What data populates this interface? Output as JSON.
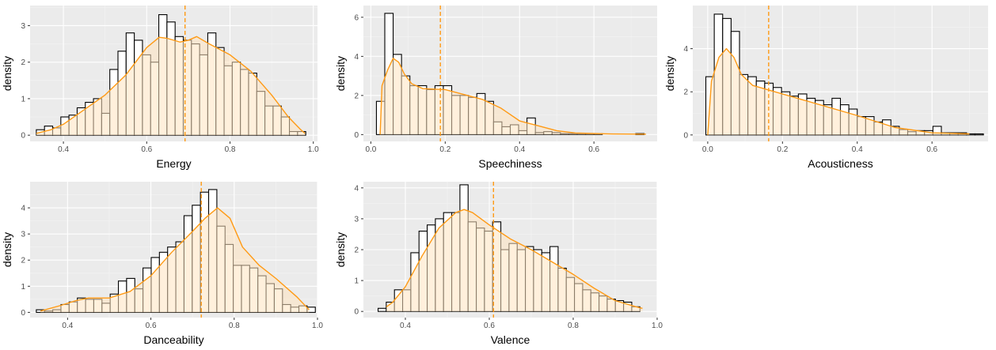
{
  "colors": {
    "panel_bg": "#ebebeb",
    "grid_major": "#ffffff",
    "bar_fill": "#ffffff",
    "bar_stroke": "#000000",
    "density_line": "#ff9a14",
    "density_fill": "#ffe4bf",
    "mean_line": "#ff9a14"
  },
  "chart_data": [
    {
      "type": "bar",
      "xlabel": "Energy",
      "ylabel": "density",
      "xlim": [
        0.32,
        1.01
      ],
      "ylim": [
        -0.17,
        3.55
      ],
      "xticks": [
        0.4,
        0.6,
        0.8,
        1.0
      ],
      "xtick_labels": [
        "0.4",
        "0.6",
        "0.8",
        "1.0"
      ],
      "yticks": [
        0,
        1,
        2,
        3
      ],
      "ytick_labels": [
        "0",
        "1",
        "2",
        "3"
      ],
      "bins_start": 0.335,
      "bin_width": 0.0196,
      "histogram": [
        0.15,
        0.25,
        0.2,
        0.5,
        0.55,
        0.75,
        0.9,
        1.0,
        0.6,
        1.8,
        2.3,
        2.8,
        2.6,
        2.2,
        2.0,
        3.3,
        3.1,
        2.7,
        2.6,
        2.5,
        2.2,
        2.8,
        2.4,
        1.9,
        2.0,
        1.8,
        1.7,
        1.2,
        0.8,
        0.8,
        0.5,
        0.1,
        0.1
      ],
      "density_x": [
        0.335,
        0.37,
        0.4,
        0.45,
        0.5,
        0.55,
        0.6,
        0.63,
        0.65,
        0.68,
        0.7,
        0.72,
        0.75,
        0.8,
        0.85,
        0.9,
        0.94,
        0.97,
        0.98
      ],
      "density_y": [
        0.05,
        0.15,
        0.3,
        0.7,
        1.1,
        1.65,
        2.4,
        2.68,
        2.65,
        2.55,
        2.6,
        2.7,
        2.5,
        2.2,
        1.75,
        1.1,
        0.5,
        0.15,
        0.05
      ],
      "mean": 0.692
    },
    {
      "type": "bar",
      "xlabel": "Speechiness",
      "ylabel": "density",
      "xlim": [
        -0.02,
        0.77
      ],
      "ylim": [
        -0.35,
        6.6
      ],
      "xticks": [
        0.0,
        0.2,
        0.4,
        0.6
      ],
      "xtick_labels": [
        "0.0",
        "0.2",
        "0.4",
        "0.6"
      ],
      "yticks": [
        0,
        2,
        4,
        6
      ],
      "ytick_labels": [
        "0",
        "2",
        "4",
        "6"
      ],
      "bins_start": 0.015,
      "bin_width": 0.0225,
      "histogram": [
        1.7,
        6.2,
        4.1,
        3.0,
        2.5,
        2.5,
        2.3,
        2.5,
        2.5,
        2.0,
        2.0,
        1.9,
        2.1,
        1.7,
        0.65,
        0.4,
        0.5,
        0.2,
        0.85,
        0.1,
        0.15,
        0.1,
        0.05,
        0.05,
        0.05,
        0.05,
        0.05,
        0.0,
        0.0,
        0.0,
        0.0,
        0.05,
        0.0
      ],
      "density_x": [
        0.025,
        0.03,
        0.045,
        0.06,
        0.075,
        0.09,
        0.11,
        0.14,
        0.2,
        0.25,
        0.3,
        0.35,
        0.4,
        0.45,
        0.5,
        0.55,
        0.65,
        0.74
      ],
      "density_y": [
        0.0,
        2.5,
        3.3,
        3.9,
        3.7,
        3.1,
        2.6,
        2.35,
        2.3,
        2.05,
        1.8,
        1.35,
        0.7,
        0.45,
        0.2,
        0.08,
        0.03,
        0.02
      ],
      "mean": 0.187
    },
    {
      "type": "bar",
      "xlabel": "Acousticness",
      "ylabel": "density",
      "xlim": [
        -0.04,
        0.75
      ],
      "ylim": [
        -0.3,
        6.0
      ],
      "xticks": [
        0.0,
        0.2,
        0.4,
        0.6
      ],
      "xtick_labels": [
        "0.0",
        "0.2",
        "0.4",
        "0.6"
      ],
      "yticks": [
        0,
        2,
        4
      ],
      "ytick_labels": [
        "0",
        "2",
        "4"
      ],
      "bins_start": -0.005,
      "bin_width": 0.0225,
      "histogram": [
        2.7,
        5.6,
        5.4,
        4.8,
        2.8,
        2.7,
        2.5,
        2.4,
        2.2,
        2.0,
        1.8,
        1.9,
        1.7,
        1.6,
        1.4,
        1.7,
        1.4,
        1.2,
        0.85,
        0.85,
        0.6,
        0.7,
        0.4,
        0.25,
        0.15,
        0.2,
        0.2,
        0.4,
        0.1,
        0.1,
        0.1,
        0.05,
        0.05,
        0.0
      ],
      "density_x": [
        0.0,
        0.01,
        0.03,
        0.05,
        0.07,
        0.09,
        0.12,
        0.2,
        0.3,
        0.4,
        0.5,
        0.6,
        0.7
      ],
      "density_y": [
        0.0,
        2.5,
        3.6,
        4.0,
        3.6,
        2.8,
        2.3,
        1.9,
        1.4,
        0.9,
        0.35,
        0.1,
        0.05
      ],
      "mean": 0.163
    },
    {
      "type": "bar",
      "xlabel": "Danceability",
      "ylabel": "density",
      "xlim": [
        0.31,
        1.0
      ],
      "ylim": [
        -0.2,
        5.0
      ],
      "xticks": [
        0.4,
        0.6,
        0.8,
        1.0
      ],
      "xtick_labels": [
        "0.4",
        "0.6",
        "0.8",
        "1.0"
      ],
      "yticks": [
        0,
        1,
        2,
        3,
        4
      ],
      "ytick_labels": [
        "0",
        "1",
        "2",
        "3",
        "4"
      ],
      "bins_start": 0.325,
      "bin_width": 0.0197,
      "histogram": [
        0.1,
        0.05,
        0.1,
        0.3,
        0.4,
        0.55,
        0.5,
        0.5,
        0.35,
        0.7,
        1.2,
        1.3,
        0.9,
        1.7,
        2.1,
        2.3,
        2.5,
        2.7,
        3.7,
        4.1,
        4.6,
        4.7,
        3.3,
        2.6,
        1.8,
        1.8,
        1.7,
        1.4,
        1.1,
        0.9,
        0.3,
        0.2,
        0.25,
        0.2
      ],
      "density_x": [
        0.335,
        0.38,
        0.42,
        0.45,
        0.5,
        0.55,
        0.6,
        0.65,
        0.7,
        0.73,
        0.76,
        0.79,
        0.82,
        0.86,
        0.9,
        0.95,
        0.98
      ],
      "density_y": [
        0.05,
        0.25,
        0.45,
        0.55,
        0.55,
        0.8,
        1.4,
        2.3,
        3.1,
        3.6,
        4.0,
        3.6,
        2.5,
        1.8,
        1.3,
        0.6,
        0.1
      ],
      "mean": 0.721
    },
    {
      "type": "bar",
      "xlabel": "Valence",
      "ylabel": "density",
      "xlim": [
        0.3,
        1.0
      ],
      "ylim": [
        -0.2,
        4.2
      ],
      "xticks": [
        0.4,
        0.6,
        0.8,
        1.0
      ],
      "xtick_labels": [
        "0.4",
        "0.6",
        "0.8",
        "1.0"
      ],
      "yticks": [
        0,
        1,
        2,
        3,
        4
      ],
      "ytick_labels": [
        "0",
        "1",
        "2",
        "3",
        "4"
      ],
      "bins_start": 0.335,
      "bin_width": 0.0195,
      "histogram": [
        0.1,
        0.3,
        0.7,
        0.7,
        1.9,
        2.6,
        2.8,
        3.0,
        3.2,
        3.2,
        4.1,
        2.9,
        2.7,
        2.6,
        2.9,
        2.0,
        2.2,
        2.0,
        2.1,
        2.0,
        1.9,
        2.1,
        1.4,
        1.1,
        0.9,
        0.7,
        0.6,
        0.5,
        0.4,
        0.35,
        0.3,
        0.15
      ],
      "density_x": [
        0.355,
        0.37,
        0.4,
        0.44,
        0.48,
        0.52,
        0.54,
        0.56,
        0.6,
        0.65,
        0.7,
        0.75,
        0.8,
        0.85,
        0.9,
        0.95,
        0.965
      ],
      "density_y": [
        0.15,
        0.3,
        0.8,
        1.8,
        2.7,
        3.2,
        3.3,
        3.2,
        2.8,
        2.35,
        2.0,
        1.6,
        1.2,
        0.75,
        0.35,
        0.15,
        0.1
      ],
      "mean": 0.61
    }
  ]
}
